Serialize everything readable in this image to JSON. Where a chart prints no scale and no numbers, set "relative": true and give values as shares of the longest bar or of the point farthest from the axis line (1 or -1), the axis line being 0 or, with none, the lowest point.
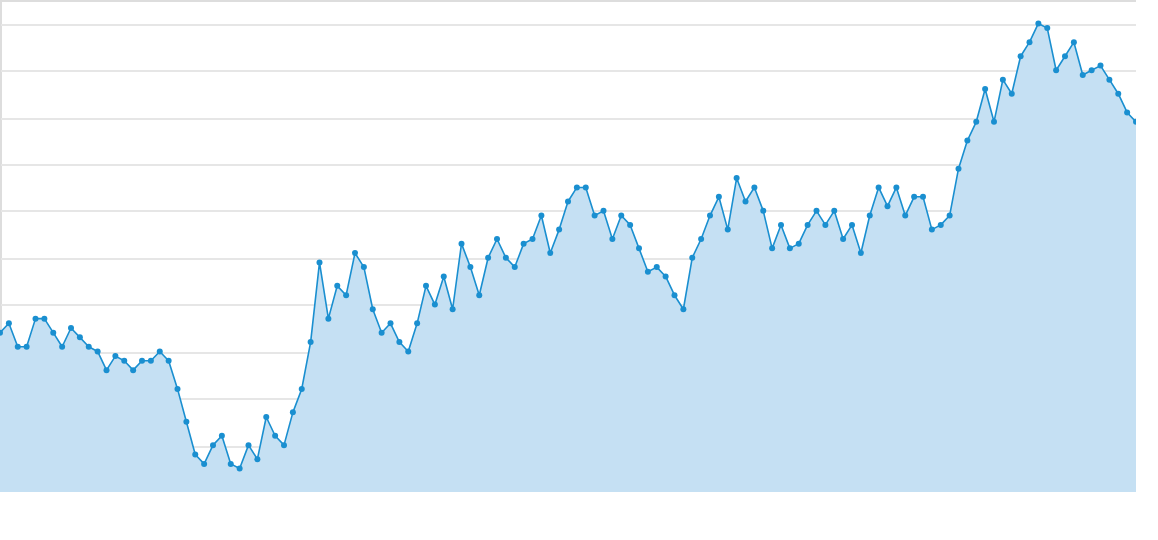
{
  "chart_data": {
    "type": "area",
    "relative": true,
    "categories": [
      null,
      null,
      null,
      null,
      null,
      null,
      null,
      null,
      null,
      null,
      null,
      null,
      null,
      null,
      null,
      null,
      null,
      null,
      null,
      null,
      null,
      null,
      null,
      null,
      null,
      null,
      null,
      null,
      null,
      null,
      null,
      null,
      null,
      null,
      null,
      null,
      null,
      null,
      null,
      null,
      null,
      null,
      null,
      null,
      null,
      null,
      null,
      null,
      null,
      null,
      null,
      null,
      null,
      null,
      null,
      null,
      null,
      null,
      null,
      null,
      null,
      null,
      null,
      null,
      null,
      null,
      null,
      null,
      null,
      null,
      null,
      null,
      null,
      null,
      null,
      null,
      null,
      null,
      null,
      null,
      null,
      null,
      null,
      null,
      null,
      null,
      null,
      null,
      null,
      null,
      null,
      null,
      null,
      null,
      null,
      null,
      null,
      null,
      null,
      null,
      null,
      null,
      null,
      null,
      null,
      null,
      null,
      null,
      null,
      null,
      null,
      null,
      null,
      null,
      null,
      null,
      null,
      null,
      null,
      null,
      null,
      null,
      null,
      null,
      null,
      null,
      null,
      null,
      null
    ],
    "series": [
      {
        "color": "#1a8fd0",
        "values": [
          0.34,
          0.36,
          0.31,
          0.31,
          0.37,
          0.37,
          0.34,
          0.31,
          0.35,
          0.33,
          0.31,
          0.3,
          0.26,
          0.29,
          0.28,
          0.26,
          0.28,
          0.28,
          0.3,
          0.28,
          0.22,
          0.15,
          0.08,
          0.06,
          0.1,
          0.12,
          0.06,
          0.05,
          0.1,
          0.07,
          0.16,
          0.12,
          0.1,
          0.17,
          0.22,
          0.32,
          0.49,
          0.37,
          0.44,
          0.42,
          0.51,
          0.48,
          0.39,
          0.34,
          0.36,
          0.32,
          0.3,
          0.36,
          0.44,
          0.4,
          0.46,
          0.39,
          0.53,
          0.48,
          0.42,
          0.5,
          0.54,
          0.5,
          0.48,
          0.53,
          0.54,
          0.59,
          0.51,
          0.56,
          0.62,
          0.65,
          0.65,
          0.59,
          0.6,
          0.54,
          0.59,
          0.57,
          0.52,
          0.47,
          0.48,
          0.46,
          0.42,
          0.39,
          0.5,
          0.54,
          0.59,
          0.63,
          0.56,
          0.67,
          0.62,
          0.65,
          0.6,
          0.52,
          0.57,
          0.52,
          0.53,
          0.57,
          0.6,
          0.57,
          0.6,
          0.54,
          0.57,
          0.51,
          0.59,
          0.65,
          0.61,
          0.65,
          0.59,
          0.63,
          0.63,
          0.56,
          0.57,
          0.59,
          0.69,
          0.75,
          0.79,
          0.86,
          0.79,
          0.88,
          0.85,
          0.93,
          0.96,
          1,
          0.99,
          0.9,
          0.93,
          0.96,
          0.89,
          0.9,
          0.91,
          0.88,
          0.85,
          0.81,
          0.79
        ]
      }
    ],
    "grid": "y",
    "marker": "circle"
  }
}
